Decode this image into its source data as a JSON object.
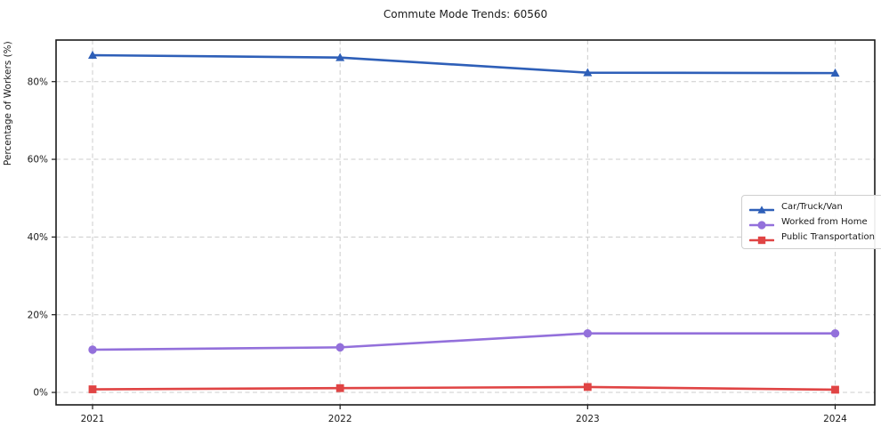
{
  "chart_data": {
    "type": "line",
    "title": "Commute Mode Trends: 60560",
    "xlabel": "",
    "ylabel": "Percentage of Workers (%)",
    "categories": [
      "2021",
      "2022",
      "2023",
      "2024"
    ],
    "series": [
      {
        "name": "Car/Truck/Van",
        "marker": "triangle",
        "color": "#2e5fb8",
        "values": [
          86.8,
          86.2,
          82.3,
          82.2
        ]
      },
      {
        "name": "Worked from Home",
        "marker": "circle",
        "color": "#9370db",
        "values": [
          11.0,
          11.6,
          15.2,
          15.2
        ]
      },
      {
        "name": "Public Transportation",
        "marker": "square",
        "color": "#e04444",
        "values": [
          0.8,
          1.1,
          1.4,
          0.7
        ]
      }
    ],
    "yticks": [
      0,
      20,
      40,
      60,
      80
    ],
    "ytick_labels": [
      "0%",
      "20%",
      "40%",
      "60%",
      "80%"
    ],
    "ylim": [
      -3.2,
      90.7
    ],
    "grid": true,
    "grid_color": "#cccccc",
    "spine_color": "#1a1a1a",
    "legend_position": "right-middle"
  }
}
